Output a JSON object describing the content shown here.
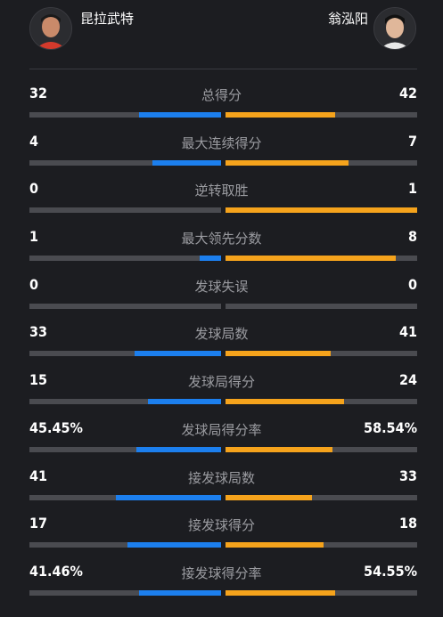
{
  "players": {
    "left": {
      "name": "昆拉武特"
    },
    "right": {
      "name": "翁泓阳"
    }
  },
  "colors": {
    "left_bar": "#1c7fee",
    "right_bar": "#f5a31c",
    "track": "#4a4b50"
  },
  "stats": [
    {
      "label": "总得分",
      "left": "32",
      "right": "42",
      "left_fill": 0.43,
      "right_fill": 0.57
    },
    {
      "label": "最大连续得分",
      "left": "4",
      "right": "7",
      "left_fill": 0.36,
      "right_fill": 0.64
    },
    {
      "label": "逆转取胜",
      "left": "0",
      "right": "1",
      "left_fill": 0.0,
      "right_fill": 1.0
    },
    {
      "label": "最大领先分数",
      "left": "1",
      "right": "8",
      "left_fill": 0.11,
      "right_fill": 0.89
    },
    {
      "label": "发球失误",
      "left": "0",
      "right": "0",
      "left_fill": 0.0,
      "right_fill": 0.0
    },
    {
      "label": "发球局数",
      "left": "33",
      "right": "41",
      "left_fill": 0.45,
      "right_fill": 0.55
    },
    {
      "label": "发球局得分",
      "left": "15",
      "right": "24",
      "left_fill": 0.38,
      "right_fill": 0.62
    },
    {
      "label": "发球局得分率",
      "left": "45.45%",
      "right": "58.54%",
      "left_fill": 0.44,
      "right_fill": 0.56
    },
    {
      "label": "接发球局数",
      "left": "41",
      "right": "33",
      "left_fill": 0.55,
      "right_fill": 0.45
    },
    {
      "label": "接发球得分",
      "left": "17",
      "right": "18",
      "left_fill": 0.49,
      "right_fill": 0.51
    },
    {
      "label": "接发球得分率",
      "left": "41.46%",
      "right": "54.55%",
      "left_fill": 0.43,
      "right_fill": 0.57
    }
  ]
}
